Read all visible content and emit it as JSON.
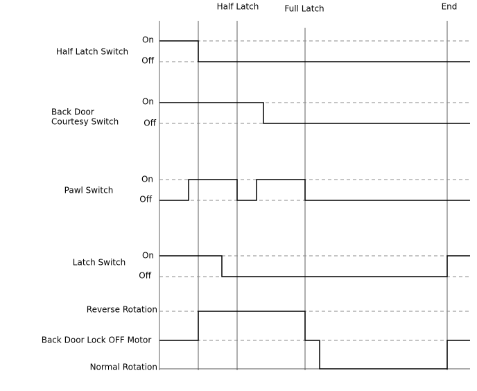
{
  "time_markers": [
    "Half Latch",
    "Full Latch",
    "End"
  ],
  "signals": [
    {
      "label": "Half Latch Switch",
      "levels": [
        "On",
        "Off"
      ]
    },
    {
      "label_lines": [
        "Back Door",
        "Courtesy Switch"
      ],
      "levels": [
        "On",
        "Off"
      ]
    },
    {
      "label": "Pawl Switch",
      "levels": [
        "On",
        "Off"
      ]
    },
    {
      "label": "Latch Switch",
      "levels": [
        "On",
        "Off"
      ]
    }
  ],
  "motor": {
    "label": "Back Door Lock OFF Motor",
    "levels": [
      "Reverse Rotation",
      "Normal Rotation"
    ]
  }
}
